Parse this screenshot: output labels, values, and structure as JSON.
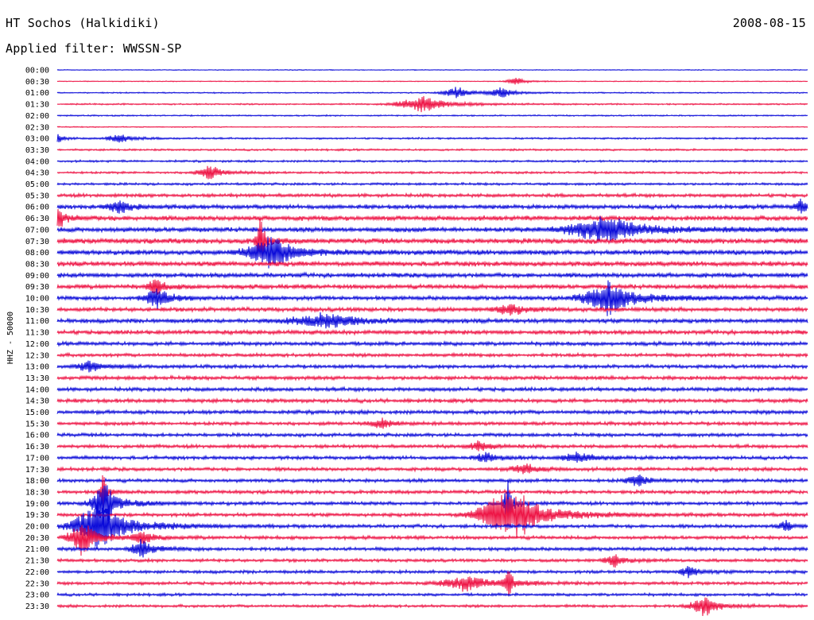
{
  "header": {
    "station": "HT Sochos (Halkidiki)",
    "date": "2008-08-15",
    "filter": "Applied filter: WWSSN-SP"
  },
  "colors": {
    "blue": "#0b0bd9",
    "red": "#ee1445",
    "background": "#ffffff"
  },
  "chart_data": {
    "type": "line",
    "title": "HT Sochos (Halkidiki)",
    "ylabel": "HHZ - 50000",
    "row_labels": [
      "00:00",
      "00:30",
      "01:00",
      "01:30",
      "02:00",
      "02:30",
      "03:00",
      "03:30",
      "04:00",
      "04:30",
      "05:00",
      "05:30",
      "06:00",
      "06:30",
      "07:00",
      "07:30",
      "08:00",
      "08:30",
      "09:00",
      "09:30",
      "10:00",
      "10:30",
      "11:00",
      "11:30",
      "12:00",
      "12:30",
      "13:00",
      "13:30",
      "14:00",
      "14:30",
      "15:00",
      "15:30",
      "16:00",
      "16:30",
      "17:00",
      "17:30",
      "18:00",
      "18:30",
      "19:00",
      "19:30",
      "20:00",
      "20:30",
      "21:00",
      "21:30",
      "22:00",
      "22:30",
      "23:00",
      "23:30"
    ],
    "color_cycle": [
      "blue",
      "red"
    ],
    "row_noise": [
      0.12,
      0.12,
      0.18,
      0.22,
      0.2,
      0.15,
      0.25,
      0.28,
      0.3,
      0.32,
      0.35,
      0.5,
      0.6,
      0.7,
      0.7,
      0.75,
      0.7,
      0.7,
      0.65,
      0.65,
      0.6,
      0.6,
      0.6,
      0.6,
      0.55,
      0.5,
      0.5,
      0.55,
      0.55,
      0.55,
      0.55,
      0.5,
      0.5,
      0.5,
      0.5,
      0.5,
      0.5,
      0.5,
      0.5,
      0.5,
      0.5,
      0.5,
      0.5,
      0.45,
      0.45,
      0.45,
      0.4,
      0.4
    ],
    "events": [
      {
        "row": 1,
        "x": 0.61,
        "amp": 0.4,
        "width": 0.008
      },
      {
        "row": 2,
        "x": 0.53,
        "amp": 0.6,
        "width": 0.012
      },
      {
        "row": 2,
        "x": 0.59,
        "amp": 0.5,
        "width": 0.01
      },
      {
        "row": 3,
        "x": 0.48,
        "amp": 0.9,
        "width": 0.02
      },
      {
        "row": 6,
        "x": 0.0,
        "amp": 0.5,
        "width": 0.005
      },
      {
        "row": 6,
        "x": 0.08,
        "amp": 0.5,
        "width": 0.01
      },
      {
        "row": 9,
        "x": 0.2,
        "amp": 0.8,
        "width": 0.01
      },
      {
        "row": 12,
        "x": 0.08,
        "amp": 0.7,
        "width": 0.01
      },
      {
        "row": 12,
        "x": 0.99,
        "amp": 0.7,
        "width": 0.006
      },
      {
        "row": 13,
        "x": 0.0,
        "amp": 1.4,
        "width": 0.005
      },
      {
        "row": 14,
        "x": 0.72,
        "amp": 1.4,
        "width": 0.03
      },
      {
        "row": 15,
        "x": 0.27,
        "amp": 2.4,
        "width": 0.004
      },
      {
        "row": 16,
        "x": 0.28,
        "amp": 1.6,
        "width": 0.02
      },
      {
        "row": 19,
        "x": 0.13,
        "amp": 1.0,
        "width": 0.006
      },
      {
        "row": 20,
        "x": 0.13,
        "amp": 1.2,
        "width": 0.01
      },
      {
        "row": 20,
        "x": 0.73,
        "amp": 1.8,
        "width": 0.02
      },
      {
        "row": 21,
        "x": 0.6,
        "amp": 0.6,
        "width": 0.012
      },
      {
        "row": 22,
        "x": 0.35,
        "amp": 0.7,
        "width": 0.03
      },
      {
        "row": 26,
        "x": 0.04,
        "amp": 0.6,
        "width": 0.01
      },
      {
        "row": 31,
        "x": 0.43,
        "amp": 0.5,
        "width": 0.01
      },
      {
        "row": 33,
        "x": 0.56,
        "amp": 0.5,
        "width": 0.01
      },
      {
        "row": 34,
        "x": 0.57,
        "amp": 0.5,
        "width": 0.01
      },
      {
        "row": 34,
        "x": 0.69,
        "amp": 0.6,
        "width": 0.012
      },
      {
        "row": 35,
        "x": 0.62,
        "amp": 0.6,
        "width": 0.01
      },
      {
        "row": 36,
        "x": 0.77,
        "amp": 0.6,
        "width": 0.01
      },
      {
        "row": 37,
        "x": 0.06,
        "amp": 2.0,
        "width": 0.003
      },
      {
        "row": 38,
        "x": 0.06,
        "amp": 2.5,
        "width": 0.01
      },
      {
        "row": 38,
        "x": 0.6,
        "amp": 2.4,
        "width": 0.004
      },
      {
        "row": 39,
        "x": 0.58,
        "amp": 1.5,
        "width": 0.02
      },
      {
        "row": 39,
        "x": 0.61,
        "amp": 1.9,
        "width": 0.02
      },
      {
        "row": 40,
        "x": 0.05,
        "amp": 2.8,
        "width": 0.02
      },
      {
        "row": 40,
        "x": 0.97,
        "amp": 0.6,
        "width": 0.006
      },
      {
        "row": 41,
        "x": 0.03,
        "amp": 2.0,
        "width": 0.01
      },
      {
        "row": 41,
        "x": 0.11,
        "amp": 0.6,
        "width": 0.01
      },
      {
        "row": 42,
        "x": 0.11,
        "amp": 0.9,
        "width": 0.01
      },
      {
        "row": 43,
        "x": 0.74,
        "amp": 0.7,
        "width": 0.008
      },
      {
        "row": 44,
        "x": 0.84,
        "amp": 0.6,
        "width": 0.008
      },
      {
        "row": 45,
        "x": 0.54,
        "amp": 0.8,
        "width": 0.02
      },
      {
        "row": 45,
        "x": 0.6,
        "amp": 1.6,
        "width": 0.004
      },
      {
        "row": 47,
        "x": 0.86,
        "amp": 1.0,
        "width": 0.012
      }
    ]
  }
}
